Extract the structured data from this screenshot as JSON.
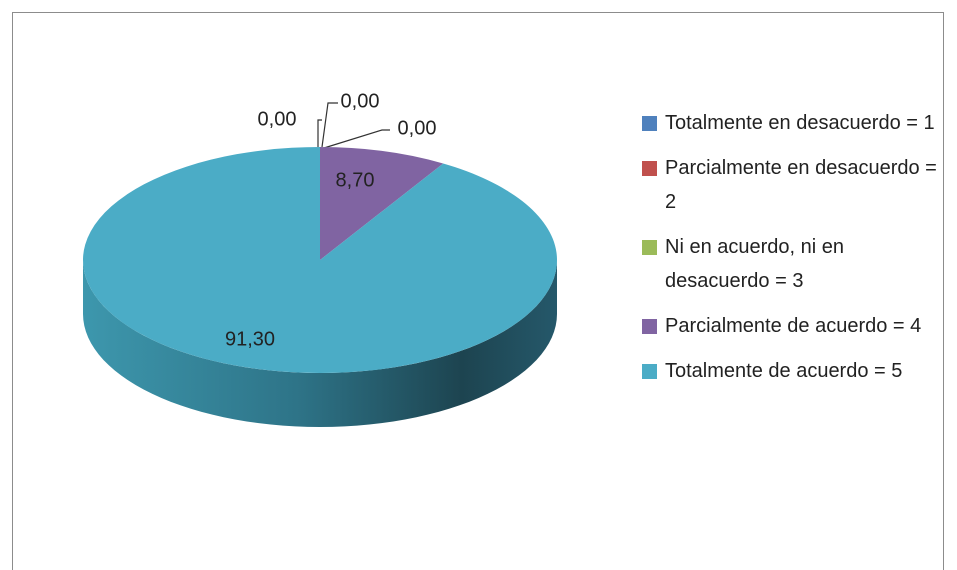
{
  "chart_data": {
    "type": "pie",
    "categories": [
      "Totalmente en desacuerdo = 1",
      "Parcialmente en desacuerdo = 2",
      "Ni en acuerdo, ni en desacuerdo = 3",
      "Parcialmente de acuerdo = 4",
      "Totalmente de acuerdo = 5"
    ],
    "values": [
      0,
      0,
      0,
      8.7,
      91.3
    ],
    "value_labels": [
      "0,00",
      "0,00",
      "0,00",
      "8,70",
      "91,30"
    ],
    "colors": [
      "#4f81bd",
      "#c0504d",
      "#9bbb59",
      "#8064a2",
      "#4bacc6"
    ],
    "legend": "right"
  }
}
